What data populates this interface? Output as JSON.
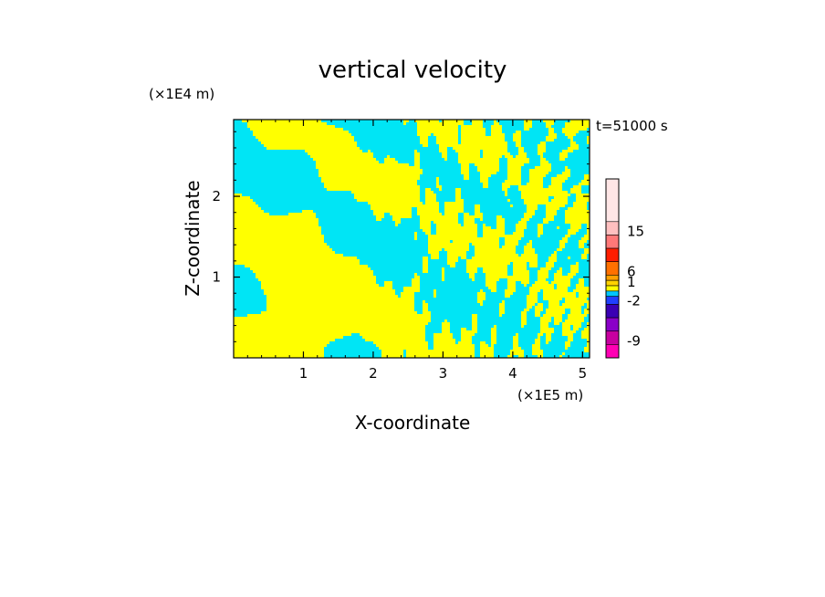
{
  "chart_data": {
    "type": "heatmap",
    "title": "vertical velocity",
    "xlabel": "X-coordinate",
    "ylabel": "Z-coordinate",
    "x_unit": "(×1E5 m)",
    "y_unit": "(×1E4 m)",
    "time_label": "t=51000 s",
    "xlim": [
      0,
      5.1
    ],
    "ylim": [
      0,
      2.95
    ],
    "x_ticks": [
      1,
      2,
      3,
      4,
      5
    ],
    "y_ticks": [
      1,
      2
    ],
    "x_tick_labels": [
      "1",
      "2",
      "3",
      "4",
      "5"
    ],
    "y_tick_labels": [
      "1",
      "2"
    ],
    "field_colors": {
      "negative": "#00e5f5",
      "positive": "#ffff00"
    },
    "colorbar": {
      "levels_top_to_bottom": [
        "> 15 (top)",
        "15",
        "",
        "6",
        "",
        "1",
        "",
        "",
        "-2",
        "",
        "",
        "-9",
        ""
      ],
      "colors_top_to_bottom": [
        "#ffe6e6",
        "#ffc0c0",
        "#ff7878",
        "#ff1e00",
        "#ff7000",
        "#ffa000",
        "#ffd200",
        "#ffff00",
        "#00c8ff",
        "#2040ff",
        "#3a00b4",
        "#8a00c8",
        "#c800a0",
        "#ff00b4"
      ],
      "labels": [
        "15",
        "6",
        "1",
        "-2",
        "-9"
      ]
    }
  }
}
